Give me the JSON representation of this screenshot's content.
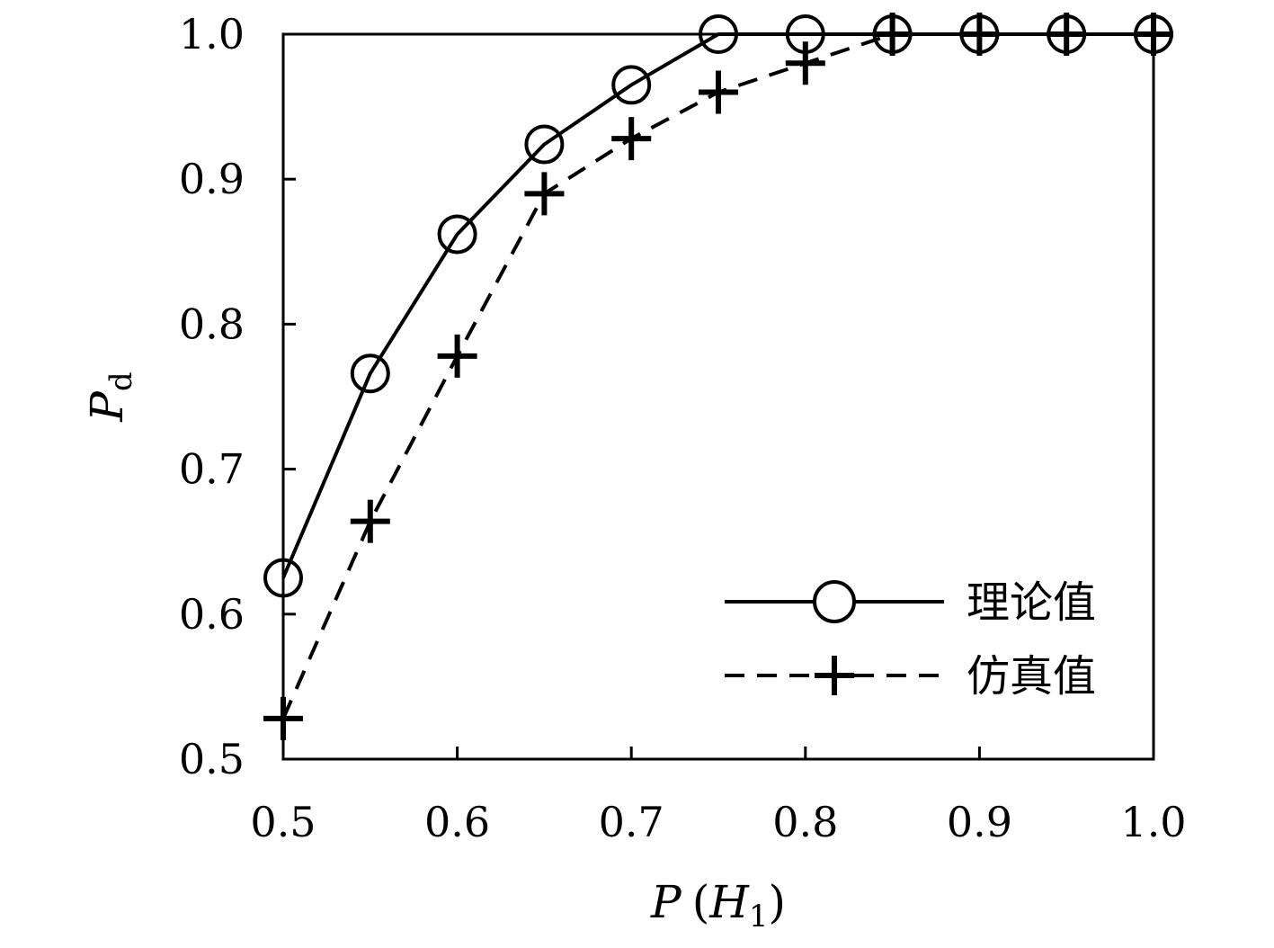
{
  "chart_data": {
    "type": "line",
    "x": [
      0.5,
      0.55,
      0.6,
      0.65,
      0.7,
      0.75,
      0.8,
      0.85,
      0.9,
      0.95,
      1.0
    ],
    "series": [
      {
        "name": "理论值",
        "values": [
          0.625,
          0.766,
          0.862,
          0.924,
          0.965,
          1.0,
          1.0,
          1.0,
          1.0,
          1.0,
          1.0
        ],
        "line": "solid",
        "marker": "circle",
        "color": "#000000"
      },
      {
        "name": "仿真值",
        "values": [
          0.528,
          0.664,
          0.778,
          0.89,
          0.928,
          0.96,
          0.98,
          1.0,
          1.0,
          1.0,
          1.0
        ],
        "line": "dashed",
        "marker": "plus",
        "color": "#000000"
      }
    ],
    "xlim": [
      0.5,
      1.0
    ],
    "ylim": [
      0.5,
      1.0
    ],
    "xticks": [
      "0.5",
      "0.6",
      "0.7",
      "0.8",
      "0.9",
      "1.0"
    ],
    "yticks": [
      "0.5",
      "0.6",
      "0.7",
      "0.8",
      "0.9",
      "1.0"
    ],
    "xlabel": {
      "main": "P",
      "paren_open": "(",
      "sym": "H",
      "sub": "1",
      "paren_close": ")"
    },
    "ylabel": {
      "main": "P",
      "sub": "d"
    },
    "legend_position": "bottom-right",
    "grid": false
  }
}
